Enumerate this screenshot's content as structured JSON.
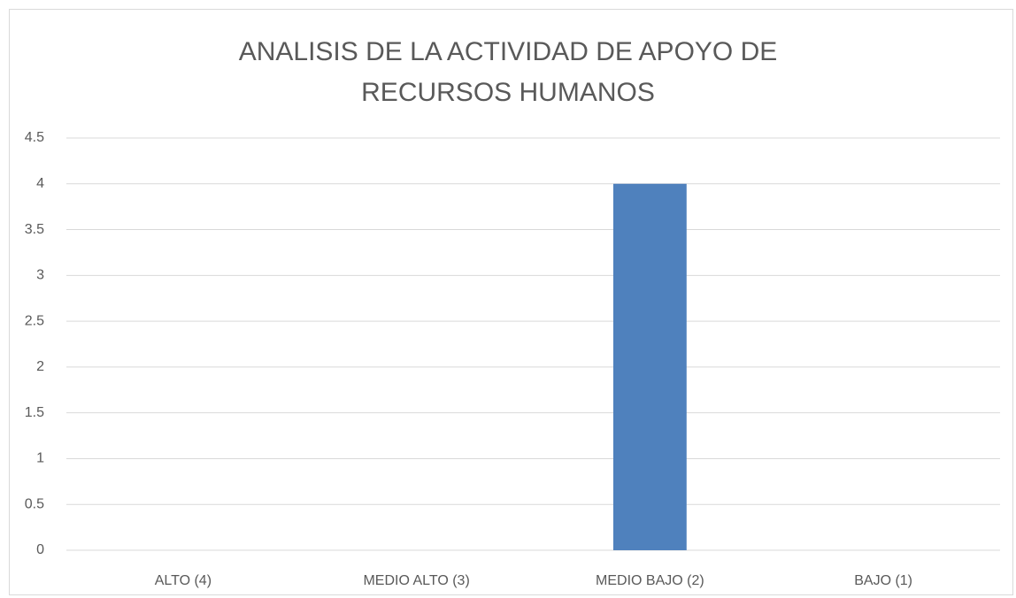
{
  "chart_data": {
    "type": "bar",
    "title": "ANALISIS DE LA ACTIVIDAD DE APOYO DE RECURSOS HUMANOS",
    "categories": [
      "ALTO (4)",
      "MEDIO ALTO (3)",
      "MEDIO BAJO (2)",
      "BAJO (1)"
    ],
    "values": [
      0,
      0,
      4,
      0
    ],
    "color": "#4f81bd",
    "ylim": [
      0,
      4.5
    ],
    "yticks": [
      0,
      0.5,
      1,
      1.5,
      2,
      2.5,
      3,
      3.5,
      4,
      4.5
    ],
    "grid": true
  }
}
